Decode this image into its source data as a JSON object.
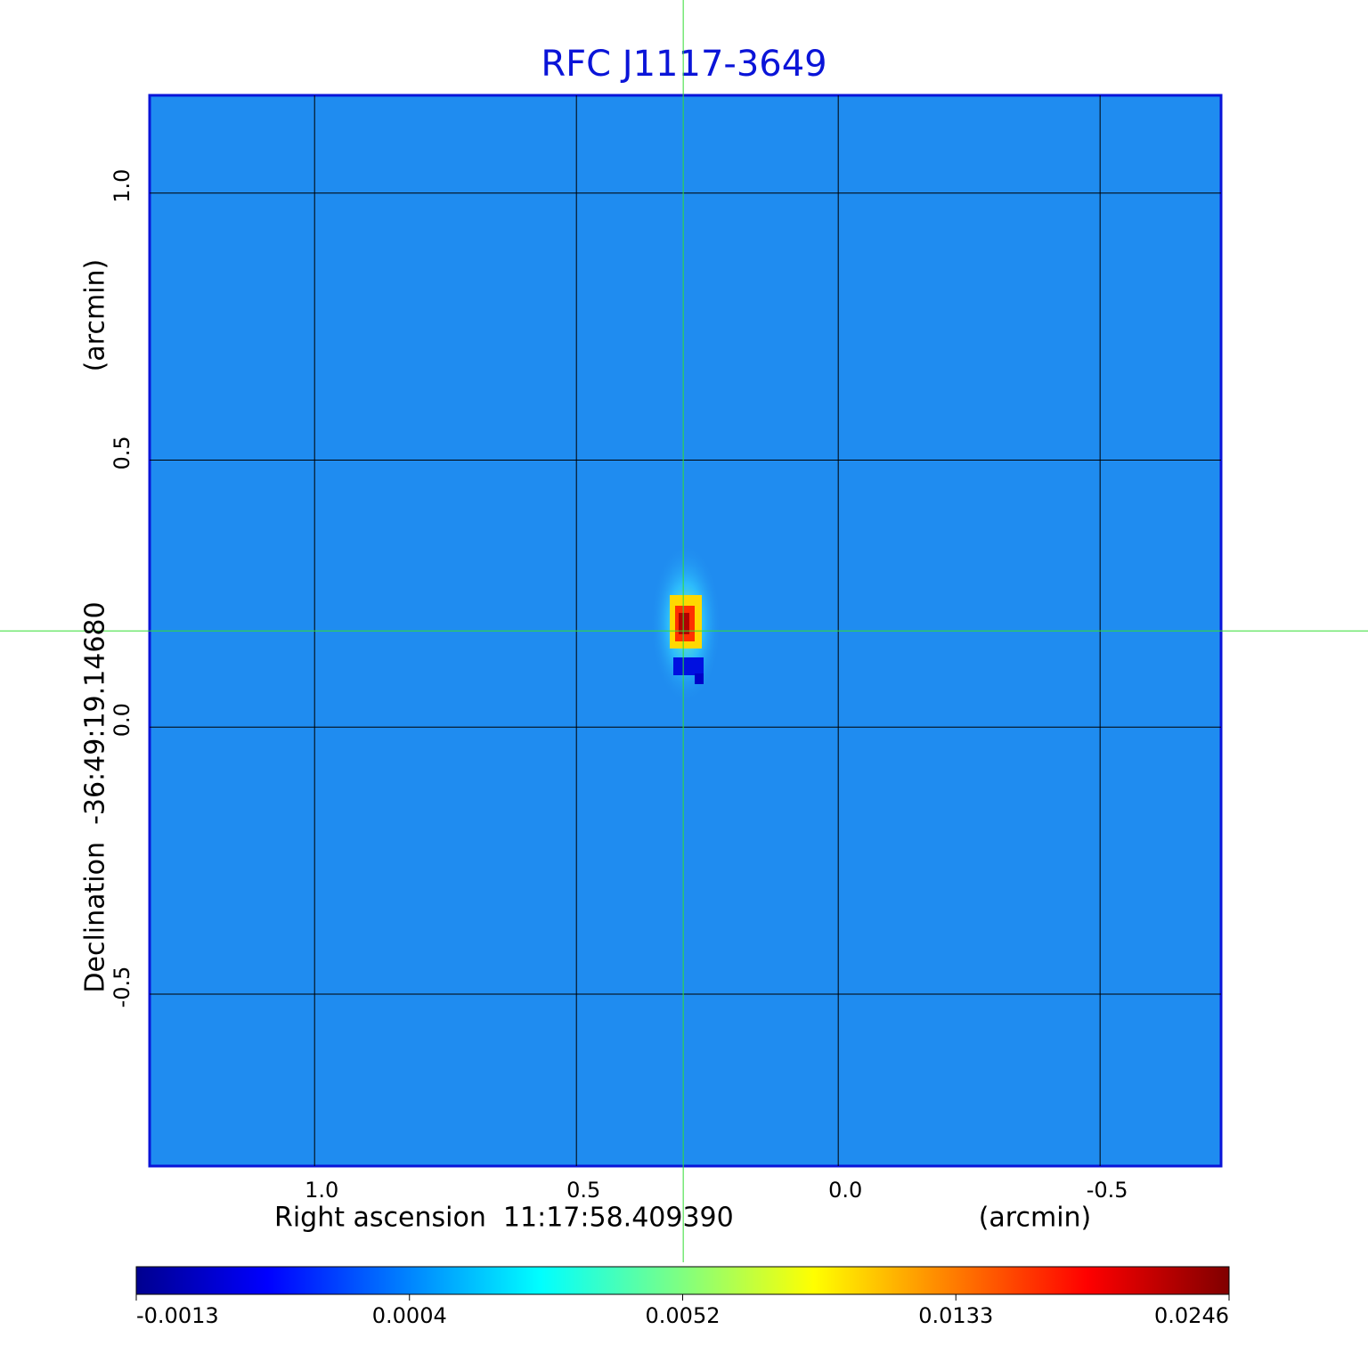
{
  "chart_data": {
    "type": "image",
    "title": "RFC J1117-3649",
    "x_label": "Right ascension  11:17:58.409390",
    "x_unit": "(arcmin)",
    "y_label": "Declination  -36:49:19.14680",
    "y_unit": "(arcmin)",
    "xlim": [
      1.315,
      -0.731
    ],
    "ylim": [
      -0.822,
      1.183
    ],
    "xticks": [
      {
        "value": 1,
        "label": "1.0"
      },
      0.5,
      {
        "value": 0,
        "label": "0.0"
      },
      -0.5
    ],
    "yticks": [
      {
        "value": 1,
        "label": "1.0"
      },
      0.5,
      {
        "value": 0,
        "label": "0.0"
      },
      -0.5
    ],
    "grid": true,
    "crosshair": {
      "x": 0.296,
      "y": 0.18
    },
    "colorbar_ticks": [
      -0.0013,
      0.0004,
      0.0052,
      0.0133,
      0.0246
    ]
  }
}
